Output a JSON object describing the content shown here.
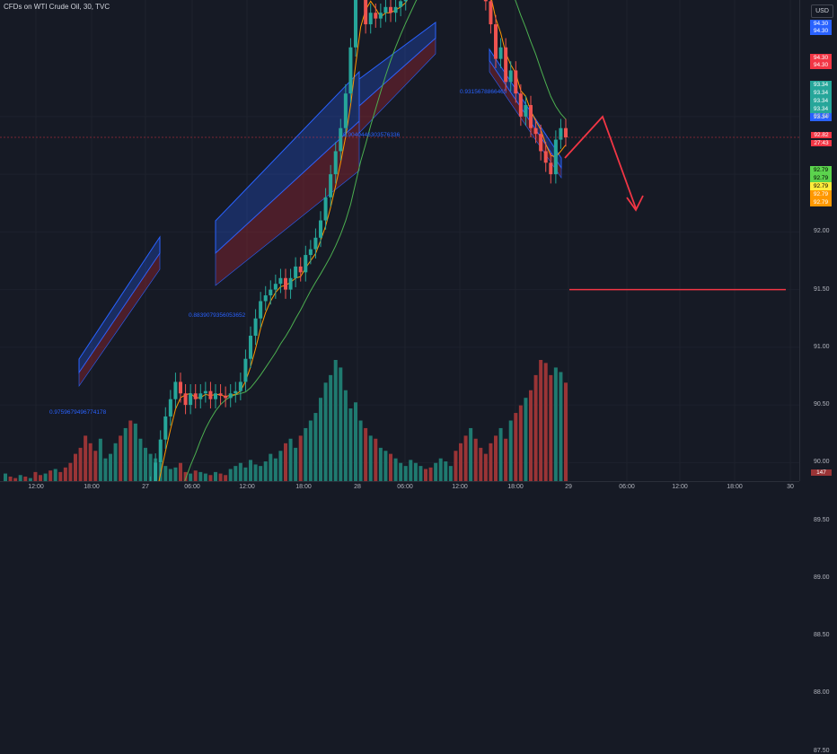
{
  "app": {
    "title": "CFDs on WTI Crude Oil, 30, TVC",
    "currency": "USD"
  },
  "colors": {
    "background": "#161a25",
    "up": "#26a69a",
    "down": "#ef5350",
    "vol_up": "#1f7a70",
    "vol_down": "#9a3436",
    "ma_fast": "#ff9800",
    "ma_slow": "#4caf50",
    "channel_blue": "#2962ff",
    "channel_red": "#b22833",
    "projection": "#f23645",
    "resistance": "#4caf50"
  },
  "price_tags": [
    {
      "value": "94.30",
      "color": "#2962ff"
    },
    {
      "value": "94.30",
      "color": "#2962ff"
    },
    {
      "value": "94.30",
      "color": "#f23645"
    },
    {
      "value": "94.30",
      "color": "#f23645"
    },
    {
      "value": "93.34",
      "color": "#26a69a"
    },
    {
      "value": "93.34",
      "color": "#26a69a"
    },
    {
      "value": "93.34",
      "color": "#26a69a"
    },
    {
      "value": "93.34",
      "color": "#26a69a"
    },
    {
      "value": "93.34",
      "color": "#2962ff"
    },
    {
      "value": "92.79",
      "color": "#5bd34d"
    },
    {
      "value": "92.79",
      "color": "#5bd34d"
    },
    {
      "value": "92.79",
      "color": "#ffeb3b"
    },
    {
      "value": "92.79",
      "color": "#ff9800"
    },
    {
      "value": "92.79",
      "color": "#ff9800"
    }
  ],
  "current_price": {
    "value": "92.82",
    "countdown": "27:43"
  },
  "volume_tag": "147",
  "annotations": [
    "0.9759679496774178",
    "0.8839079356053652",
    "0.9040446303576336",
    "0.9315678866465"
  ],
  "chart_data": {
    "type": "candlestick",
    "title": "CFDs on WTI Crude Oil, 30, TVC",
    "ylim": [
      87.2,
      94.8
    ],
    "yticks": [
      87.5,
      88.0,
      88.5,
      89.0,
      89.5,
      90.0,
      90.5,
      91.0,
      91.5,
      92.0,
      92.5,
      93.0
    ],
    "ytick_labels": [
      "87.50",
      "88.00",
      "88.50",
      "89.00",
      "89.50",
      "90.00",
      "90.50",
      "91.00",
      "91.50",
      "92.00",
      "92.50",
      "93.00"
    ],
    "xticks": [
      "12:00",
      "18:00",
      "27",
      "06:00",
      "12:00",
      "18:00",
      "28",
      "06:00",
      "12:00",
      "18:00",
      "29",
      "06:00",
      "12:00",
      "18:00",
      "30"
    ],
    "x_start": 0,
    "bars_total": 122,
    "close": [
      89.72,
      89.68,
      89.62,
      89.66,
      89.55,
      89.6,
      89.5,
      89.42,
      89.5,
      89.35,
      89.38,
      89.3,
      89.28,
      89.25,
      89.1,
      89.0,
      88.7,
      88.4,
      88.3,
      88.55,
      88.7,
      88.8,
      89.0,
      88.95,
      89.1,
      89.0,
      89.2,
      89.4,
      89.6,
      89.8,
      90.0,
      90.2,
      90.4,
      90.55,
      90.7,
      90.6,
      90.5,
      90.6,
      90.55,
      90.6,
      90.62,
      90.55,
      90.6,
      90.58,
      90.56,
      90.6,
      90.62,
      90.7,
      90.9,
      91.1,
      91.25,
      91.4,
      91.45,
      91.5,
      91.55,
      91.6,
      91.5,
      91.6,
      91.7,
      91.65,
      91.8,
      91.85,
      91.95,
      92.1,
      92.3,
      92.5,
      92.7,
      92.9,
      93.2,
      93.6,
      94.1,
      94.2,
      93.8,
      93.9,
      93.85,
      93.9,
      93.95,
      93.9,
      93.95,
      94.0,
      94.1,
      94.2,
      94.5,
      94.8,
      94.6,
      94.5,
      94.55,
      94.6,
      94.65,
      94.7,
      94.62,
      94.58,
      94.4,
      94.5,
      94.3,
      94.1,
      94.0,
      93.8,
      93.5,
      93.6,
      93.3,
      93.4,
      93.2,
      93.0,
      93.1,
      92.9,
      92.85,
      92.7,
      92.6,
      92.5,
      92.8,
      92.9,
      92.82
    ],
    "open": [
      89.7,
      89.72,
      89.68,
      89.62,
      89.66,
      89.55,
      89.6,
      89.5,
      89.42,
      89.5,
      89.35,
      89.38,
      89.3,
      89.28,
      89.25,
      89.1,
      89.0,
      88.7,
      88.4,
      88.3,
      88.55,
      88.7,
      88.8,
      89.0,
      88.95,
      89.1,
      89.0,
      89.2,
      89.4,
      89.6,
      89.8,
      90.0,
      90.2,
      90.4,
      90.55,
      90.7,
      90.6,
      90.5,
      90.6,
      90.55,
      90.6,
      90.62,
      90.55,
      90.6,
      90.58,
      90.56,
      90.6,
      90.62,
      90.7,
      90.9,
      91.1,
      91.25,
      91.4,
      91.45,
      91.5,
      91.55,
      91.6,
      91.5,
      91.6,
      91.7,
      91.65,
      91.8,
      91.85,
      91.95,
      92.1,
      92.3,
      92.5,
      92.7,
      92.9,
      93.2,
      93.6,
      94.1,
      94.2,
      93.8,
      93.9,
      93.85,
      93.9,
      93.95,
      93.9,
      93.95,
      94.0,
      94.1,
      94.2,
      94.5,
      94.8,
      94.6,
      94.5,
      94.55,
      94.6,
      94.65,
      94.7,
      94.62,
      94.58,
      94.4,
      94.5,
      94.3,
      94.1,
      94.0,
      93.8,
      93.5,
      93.6,
      93.3,
      93.4,
      93.2,
      93.0,
      93.1,
      92.9,
      92.85,
      92.7,
      92.6,
      92.5,
      92.8,
      92.9
    ],
    "volume": [
      5,
      3,
      2,
      4,
      3,
      2,
      6,
      4,
      5,
      7,
      8,
      6,
      9,
      12,
      18,
      22,
      30,
      25,
      20,
      28,
      15,
      18,
      25,
      30,
      35,
      40,
      38,
      28,
      22,
      18,
      15,
      12,
      10,
      8,
      9,
      12,
      6,
      5,
      7,
      6,
      5,
      4,
      6,
      5,
      4,
      8,
      10,
      12,
      9,
      14,
      11,
      10,
      13,
      18,
      15,
      20,
      25,
      28,
      22,
      30,
      35,
      40,
      45,
      55,
      65,
      70,
      80,
      75,
      60,
      48,
      52,
      40,
      35,
      30,
      28,
      22,
      20,
      18,
      15,
      12,
      10,
      14,
      12,
      10,
      8,
      9,
      12,
      15,
      13,
      10,
      20,
      25,
      30,
      35,
      28,
      22,
      18,
      25,
      30,
      35,
      28,
      40,
      45,
      50,
      55,
      60,
      70,
      80,
      78,
      70,
      75,
      72,
      65
    ],
    "series": [
      {
        "name": "",
        "type": "ma_fast"
      },
      {
        "name": "",
        "type": "ma_slow"
      }
    ],
    "levels": {
      "resistance": 94.45,
      "target": 91.5,
      "current": 92.82
    },
    "projection": [
      [
        93.0,
        92.2
      ],
      [
        93.95,
        93.25
      ],
      [
        94.0,
        91.5
      ]
    ]
  }
}
